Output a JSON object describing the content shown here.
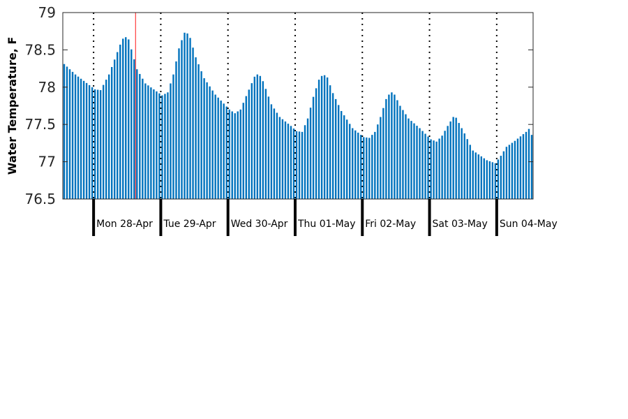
{
  "chart_data": {
    "type": "bar",
    "title": "",
    "ylabel": "Water Temperature, F",
    "xlabel": "",
    "ylim": [
      76.5,
      79
    ],
    "yticks": [
      76.5,
      77,
      77.5,
      78,
      78.5,
      79
    ],
    "ytick_labels": [
      "76.5",
      "77",
      "77.5",
      "78",
      "78.5",
      "79"
    ],
    "grid": false,
    "bar_color": "#0072bd",
    "marker_color": "#ff3b3b",
    "day_labels": [
      "Mon 28-Apr",
      "Tue 29-Apr",
      "Wed 30-Apr",
      "Thu 01-May",
      "Fri 02-May",
      "Sat 03-May",
      "Sun 04-May"
    ],
    "x_start_hour": -11,
    "x_end_hour": 157,
    "current_time_hour": 15,
    "anchors": [
      [
        -11,
        78.31
      ],
      [
        -7,
        78.17
      ],
      [
        0,
        77.97
      ],
      [
        2,
        77.96
      ],
      [
        5,
        78.17
      ],
      [
        9,
        78.57
      ],
      [
        10,
        78.65
      ],
      [
        11,
        78.67
      ],
      [
        12,
        78.64
      ],
      [
        15,
        78.24
      ],
      [
        18,
        78.05
      ],
      [
        21,
        77.97
      ],
      [
        24,
        77.89
      ],
      [
        26,
        77.93
      ],
      [
        28,
        78.17
      ],
      [
        30,
        78.52
      ],
      [
        31,
        78.63
      ],
      [
        32,
        78.73
      ],
      [
        33,
        78.72
      ],
      [
        34,
        78.66
      ],
      [
        36,
        78.4
      ],
      [
        39,
        78.12
      ],
      [
        43,
        77.9
      ],
      [
        48,
        77.7
      ],
      [
        50,
        77.65
      ],
      [
        52,
        77.7
      ],
      [
        54,
        77.88
      ],
      [
        57,
        78.14
      ],
      [
        58,
        78.17
      ],
      [
        59,
        78.15
      ],
      [
        60,
        78.08
      ],
      [
        63,
        77.77
      ],
      [
        66,
        77.6
      ],
      [
        70,
        77.48
      ],
      [
        72,
        77.41
      ],
      [
        74,
        77.4
      ],
      [
        76,
        77.58
      ],
      [
        78,
        77.87
      ],
      [
        80,
        78.1
      ],
      [
        81,
        78.15
      ],
      [
        82,
        78.16
      ],
      [
        83,
        78.13
      ],
      [
        85,
        77.92
      ],
      [
        88,
        77.68
      ],
      [
        92,
        77.45
      ],
      [
        96,
        77.33
      ],
      [
        98,
        77.32
      ],
      [
        100,
        77.4
      ],
      [
        102,
        77.6
      ],
      [
        104,
        77.84
      ],
      [
        105,
        77.9
      ],
      [
        106,
        77.93
      ],
      [
        107,
        77.9
      ],
      [
        109,
        77.75
      ],
      [
        112,
        77.58
      ],
      [
        116,
        77.45
      ],
      [
        120,
        77.3
      ],
      [
        122,
        77.27
      ],
      [
        124,
        77.35
      ],
      [
        126,
        77.48
      ],
      [
        128,
        77.6
      ],
      [
        129,
        77.59
      ],
      [
        132,
        77.38
      ],
      [
        135,
        77.15
      ],
      [
        140,
        77.02
      ],
      [
        143,
        76.98
      ],
      [
        145,
        77.08
      ],
      [
        147,
        77.2
      ],
      [
        150,
        77.28
      ],
      [
        154,
        77.4
      ],
      [
        155,
        77.44
      ],
      [
        156,
        77.36
      ]
    ]
  }
}
